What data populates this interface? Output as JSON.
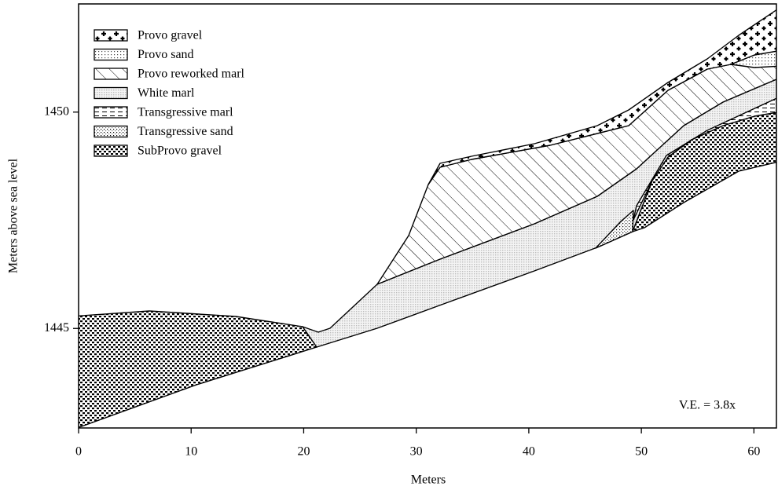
{
  "chart_data": {
    "type": "cross-section",
    "xlabel": "Meters",
    "ylabel": "Meters above sea level",
    "xlim": [
      0,
      62
    ],
    "ylim": [
      1442.7,
      1452.5
    ],
    "xticks": [
      0,
      10,
      20,
      30,
      40,
      50,
      60
    ],
    "yticks": [
      1445,
      1450
    ],
    "legend": [
      "Provo gravel",
      "Provo sand",
      "Provo reworked marl",
      "White marl",
      "Transgressive marl",
      "Transgressive sand",
      "SubProvo gravel"
    ],
    "annotation": "V.E. = 3.8x"
  }
}
